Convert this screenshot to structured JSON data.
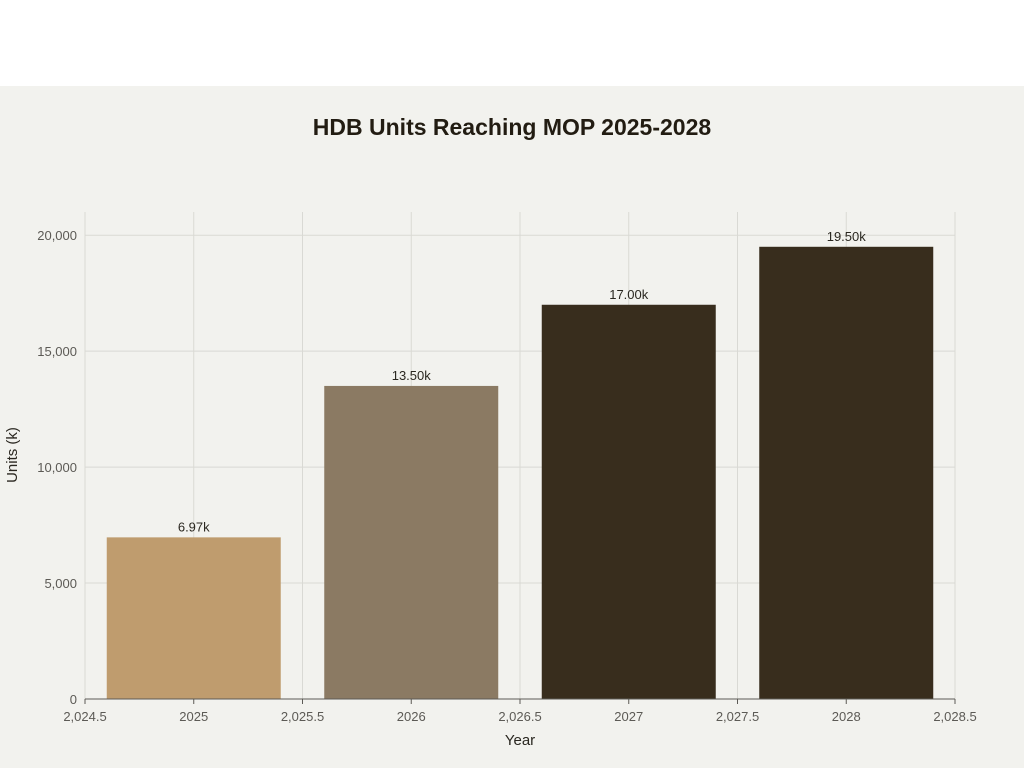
{
  "chart_data": {
    "type": "bar",
    "title": "HDB Units Reaching MOP 2025-2028",
    "xlabel": "Year",
    "ylabel": "Units (k)",
    "categories": [
      2025,
      2026,
      2027,
      2028
    ],
    "values": [
      6970,
      13500,
      17000,
      19500
    ],
    "data_labels": [
      "6.97k",
      "13.50k",
      "17.00k",
      "19.50k"
    ],
    "bar_colors": [
      "#bf9c6e",
      "#8b7a63",
      "#382d1d",
      "#382d1d"
    ],
    "xlim": [
      2024.5,
      2028.5
    ],
    "ylim": [
      0,
      21000
    ],
    "x_ticks": [
      2024.5,
      2025,
      2025.5,
      2026,
      2026.5,
      2027,
      2027.5,
      2028,
      2028.5
    ],
    "x_tick_labels": [
      "2,024.5",
      "2025",
      "2,025.5",
      "2026",
      "2,026.5",
      "2027",
      "2,027.5",
      "2028",
      "2,028.5"
    ],
    "y_ticks": [
      0,
      5000,
      10000,
      15000,
      20000
    ],
    "y_tick_labels": [
      "0",
      "5,000",
      "10,000",
      "15,000",
      "20,000"
    ],
    "bar_width": 0.8,
    "grid": true,
    "legend": "none"
  },
  "colors": {
    "background": "#f2f2ee",
    "grid": "#d9d9d4",
    "axis": "#5c5a55"
  }
}
